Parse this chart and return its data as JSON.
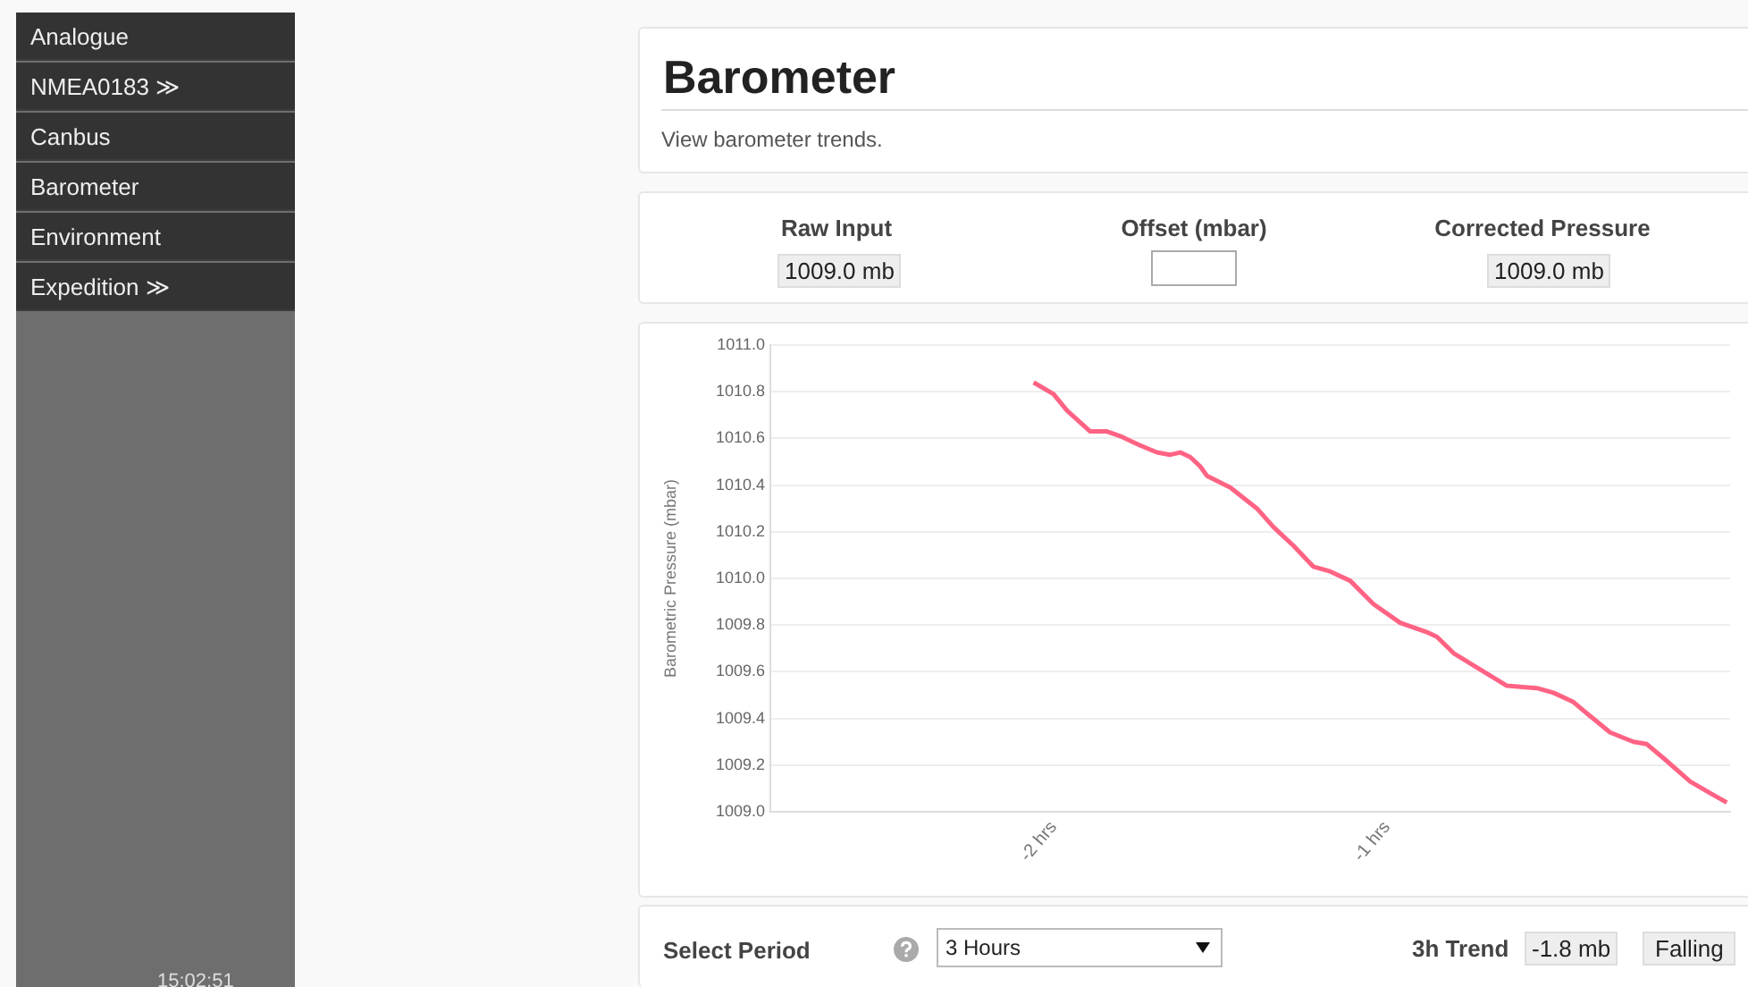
{
  "chart_data": {
    "type": "line",
    "title": "Barometer",
    "subtitle": "View barometer trends.",
    "ylabel": "Barometric Pressure (mbar)",
    "x": [
      -2.06,
      -2.0,
      -1.96,
      -1.89,
      -1.84,
      -1.8,
      -1.74,
      -1.69,
      -1.65,
      -1.62,
      -1.59,
      -1.56,
      -1.54,
      -1.47,
      -1.39,
      -1.34,
      -1.28,
      -1.22,
      -1.17,
      -1.11,
      -1.04,
      -0.96,
      -0.88,
      -0.85,
      -0.8,
      -0.72,
      -0.64,
      -0.55,
      -0.5,
      -0.44,
      -0.39,
      -0.33,
      -0.26,
      -0.22,
      -0.17,
      -0.09,
      -0.03,
      0.02
    ],
    "series": [
      {
        "color": "#ff6384",
        "values": [
          1010.84,
          1010.79,
          1010.72,
          1010.63,
          1010.63,
          1010.61,
          1010.57,
          1010.54,
          1010.53,
          1010.54,
          1010.52,
          1010.48,
          1010.44,
          1010.39,
          1010.3,
          1010.22,
          1010.14,
          1010.05,
          1010.03,
          1009.99,
          1009.89,
          1009.81,
          1009.77,
          1009.75,
          1009.68,
          1009.61,
          1009.54,
          1009.53,
          1009.51,
          1009.47,
          1009.41,
          1009.34,
          1009.3,
          1009.29,
          1009.23,
          1009.13,
          1009.08,
          1009.04
        ]
      }
    ],
    "xlim": [
      -2.85,
      0.03
    ],
    "xticks": [
      {
        "value": -2,
        "label": "-2 hrs"
      },
      {
        "value": -1,
        "label": "-1 hrs"
      }
    ],
    "ylim": [
      1009.0,
      1011.0
    ],
    "yticks": [
      {
        "value": 1009.0,
        "label": "1009.0"
      },
      {
        "value": 1009.2,
        "label": "1009.2"
      },
      {
        "value": 1009.4,
        "label": "1009.4"
      },
      {
        "value": 1009.6,
        "label": "1009.6"
      },
      {
        "value": 1009.8,
        "label": "1009.8"
      },
      {
        "value": 1010.0,
        "label": "1010.0"
      },
      {
        "value": 1010.2,
        "label": "1010.2"
      },
      {
        "value": 1010.4,
        "label": "1010.4"
      },
      {
        "value": 1010.6,
        "label": "1010.6"
      },
      {
        "value": 1010.8,
        "label": "1010.8"
      },
      {
        "value": 1011.0,
        "label": "1011.0"
      }
    ],
    "grid": "y",
    "marker": "none",
    "line_style": "solid",
    "legend": false,
    "annotations": [
      "Raw Input",
      "1009.0 mb",
      "Offset (mbar)",
      "Corrected Pressure",
      "1009.0 mb",
      "Select Period",
      "3 Hours",
      "3h Trend",
      "-1.8 mb",
      "Falling",
      "Analogue",
      "NMEA0183 ≫",
      "Canbus",
      "Barometer",
      "Environment",
      "Expedition ≫",
      "15:02:51"
    ]
  }
}
